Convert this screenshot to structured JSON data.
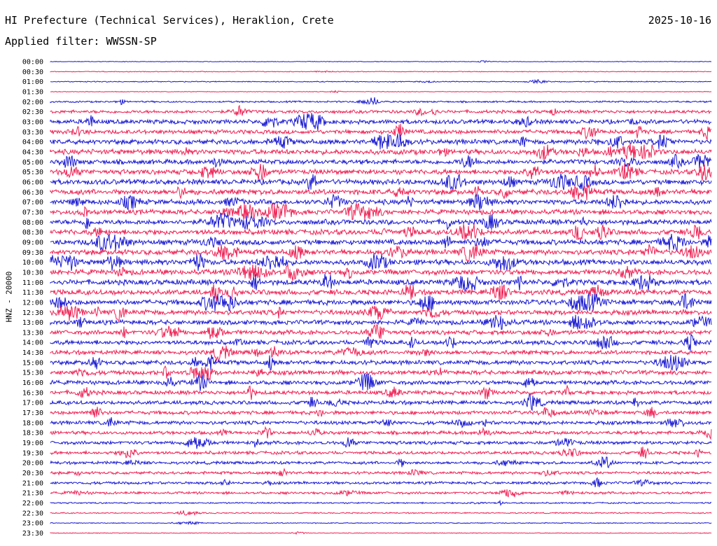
{
  "header": {
    "title": "HI Prefecture (Technical Services), Heraklion, Crete",
    "date": "2025-10-16",
    "filter": "Applied filter: WWSSN-SP"
  },
  "chart_data": {
    "type": "line",
    "chart_kind": "helicorder",
    "ylabel": "HNZ - 20000",
    "rows": [
      "00:00",
      "00:30",
      "01:00",
      "01:30",
      "02:00",
      "02:30",
      "03:00",
      "03:30",
      "04:00",
      "04:30",
      "05:00",
      "05:30",
      "06:00",
      "06:30",
      "07:00",
      "07:30",
      "08:00",
      "08:30",
      "09:00",
      "09:30",
      "10:00",
      "10:30",
      "11:00",
      "11:30",
      "12:00",
      "12:30",
      "13:00",
      "13:30",
      "14:00",
      "14:30",
      "15:00",
      "15:30",
      "16:00",
      "16:30",
      "17:00",
      "17:30",
      "18:00",
      "18:30",
      "19:00",
      "19:30",
      "20:00",
      "20:30",
      "21:00",
      "21:30",
      "22:00",
      "22:30",
      "23:00",
      "23:30"
    ],
    "noise_level": [
      0.5,
      0.6,
      0.8,
      0.5,
      1.4,
      2.6,
      3.6,
      3.4,
      4.0,
      4.2,
      3.9,
      4.0,
      4.3,
      4.4,
      4.1,
      4.0,
      4.2,
      4.3,
      4.4,
      4.3,
      4.4,
      4.3,
      4.4,
      4.3,
      4.2,
      4.0,
      3.8,
      3.6,
      3.6,
      3.5,
      3.6,
      3.6,
      3.4,
      3.3,
      3.2,
      3.0,
      3.0,
      2.8,
      2.8,
      2.6,
      2.4,
      2.3,
      2.2,
      2.0,
      1.2,
      1.0,
      0.8,
      0.6
    ],
    "colors": [
      "#1a1ad2",
      "#ee2255"
    ],
    "grid": false
  }
}
